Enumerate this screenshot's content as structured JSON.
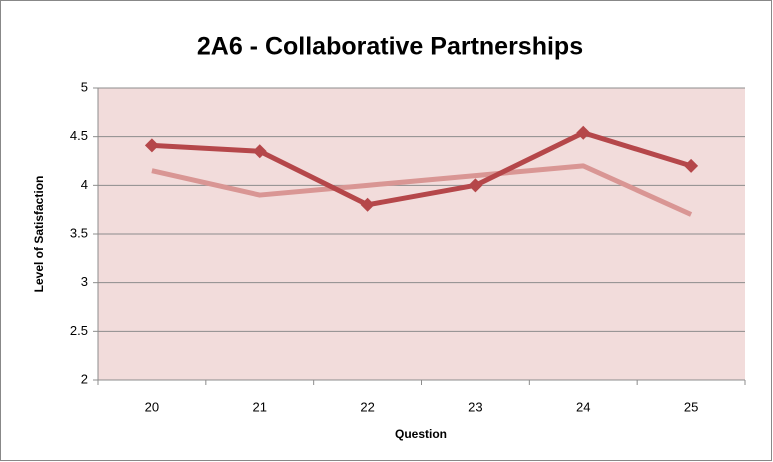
{
  "chart_data": {
    "type": "line",
    "title": "2A6 - Collaborative Partnerships",
    "x_label": "Question",
    "y_label": "Level of Satisfaction",
    "categories": [
      "20",
      "21",
      "22",
      "23",
      "24",
      "25"
    ],
    "series": [
      {
        "color": "#b5474a",
        "marker": "diamond",
        "values": [
          4.41,
          4.35,
          3.8,
          4.0,
          4.54,
          4.2
        ]
      },
      {
        "color": "#d99694",
        "values": [
          4.15,
          3.9,
          4.0,
          4.1,
          4.2,
          3.7
        ]
      }
    ],
    "ylim": [
      2,
      5
    ],
    "yticks": [
      2,
      2.5,
      3,
      3.5,
      4,
      4.5,
      5
    ],
    "grid": true
  }
}
